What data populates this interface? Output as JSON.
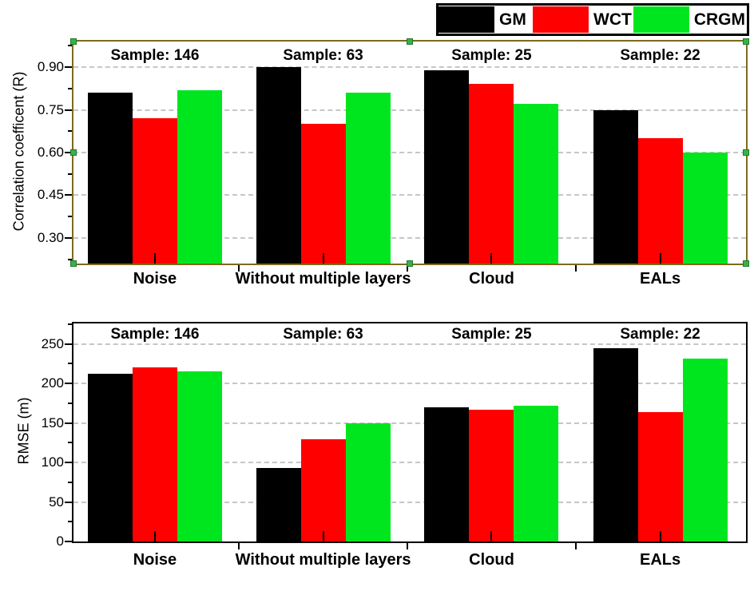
{
  "legend": {
    "items": [
      {
        "label": "GM",
        "color": "#000000"
      },
      {
        "label": "WCT",
        "color": "#ff0000"
      },
      {
        "label": "CRGM",
        "color": "#00e61e"
      }
    ]
  },
  "chart_data": [
    {
      "type": "bar",
      "title": "",
      "xlabel": "",
      "ylabel": "Correlation coefficent (R)",
      "categories": [
        "Noise",
        "Without multiple layers",
        "Cloud",
        "EALs"
      ],
      "sample_labels": [
        "Sample: 146",
        "Sample: 63",
        "Sample: 25",
        "Sample: 22"
      ],
      "series": [
        {
          "name": "GM",
          "color": "#000000",
          "values": [
            0.81,
            0.9,
            0.89,
            0.75
          ]
        },
        {
          "name": "WCT",
          "color": "#ff0000",
          "values": [
            0.72,
            0.7,
            0.84,
            0.65
          ]
        },
        {
          "name": "CRGM",
          "color": "#00e61e",
          "values": [
            0.82,
            0.81,
            0.77,
            0.6
          ]
        }
      ],
      "ylim": [
        0.21,
        0.99
      ],
      "ytick_values": [
        0.3,
        0.45,
        0.6,
        0.75,
        0.9
      ],
      "ytick_labels": [
        "0.30",
        "0.45",
        "0.60",
        "0.75",
        "0.90"
      ],
      "minor_tick_values": [
        0.225,
        0.375,
        0.525,
        0.675,
        0.825,
        0.975
      ],
      "grid_values": [
        0.3,
        0.45,
        0.6,
        0.75,
        0.9
      ],
      "grid": true,
      "legend_position": "top-right-outside",
      "frame_color": "#7d6a1e",
      "grid_color": "#c6c6c6"
    },
    {
      "type": "bar",
      "title": "",
      "xlabel": "",
      "ylabel": "RMSE (m)",
      "categories": [
        "Noise",
        "Without multiple layers",
        "Cloud",
        "EALs"
      ],
      "sample_labels": [
        "Sample: 146",
        "Sample: 63",
        "Sample: 25",
        "Sample: 22"
      ],
      "series": [
        {
          "name": "GM",
          "color": "#000000",
          "values": [
            212,
            93,
            170,
            245
          ]
        },
        {
          "name": "WCT",
          "color": "#ff0000",
          "values": [
            220,
            129,
            167,
            164
          ]
        },
        {
          "name": "CRGM",
          "color": "#00e61e",
          "values": [
            215,
            150,
            172,
            232
          ]
        }
      ],
      "ylim": [
        0,
        276
      ],
      "ytick_values": [
        0,
        50,
        100,
        150,
        200,
        250
      ],
      "ytick_labels": [
        "0",
        "50",
        "100",
        "150",
        "200",
        "250"
      ],
      "minor_tick_values": [
        25,
        75,
        125,
        175,
        225,
        275
      ],
      "grid_values": [
        50,
        100,
        150,
        200,
        250
      ],
      "grid": true,
      "frame_color": "#000000",
      "grid_color": "#c6c6c6"
    }
  ]
}
